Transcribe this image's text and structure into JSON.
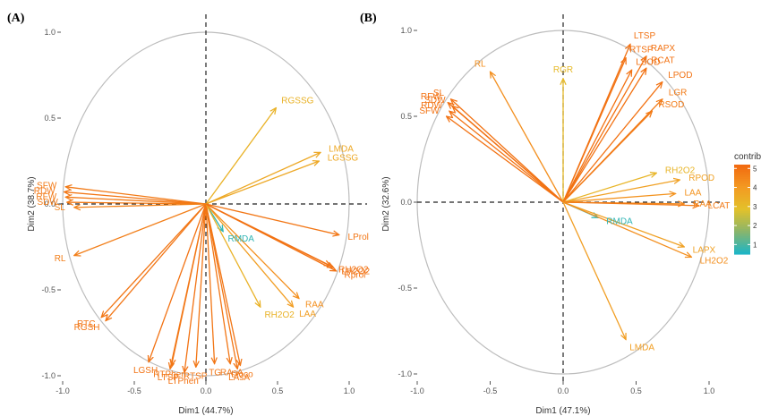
{
  "legend": {
    "title": "contrib",
    "range": [
      0.5,
      5.2
    ],
    "ticks": [
      5,
      4,
      3,
      2,
      1
    ],
    "colors": [
      "#1fb5c4",
      "#8bb56a",
      "#e3c12a",
      "#f39a22",
      "#f26a10"
    ]
  },
  "chart_data": [
    {
      "type": "pca_biplot",
      "panel": "(A)",
      "xlabel": "Dim1 (44.7%)",
      "ylabel": "Dim2 (38.7%)",
      "xlim": [
        -1.0,
        1.0
      ],
      "ylim": [
        -1.0,
        1.0
      ],
      "xticks": [
        "-1.0",
        "-0.5",
        "0.0",
        "0.5",
        "1.0"
      ],
      "yticks": [
        "-1.0",
        "-0.5",
        "0.0",
        "0.5",
        "1.0"
      ],
      "variables": [
        {
          "name": "SFW",
          "x": -0.98,
          "y": 0.1,
          "contrib": 4.8
        },
        {
          "name": "RDW",
          "x": -0.99,
          "y": 0.07,
          "contrib": 4.9
        },
        {
          "name": "RFW",
          "x": -0.98,
          "y": 0.04,
          "contrib": 4.8
        },
        {
          "name": "SDW",
          "x": -0.97,
          "y": 0.01,
          "contrib": 4.8
        },
        {
          "name": "SL",
          "x": -0.92,
          "y": -0.02,
          "contrib": 4.6
        },
        {
          "name": "RL",
          "x": -0.92,
          "y": -0.3,
          "contrib": 4.7
        },
        {
          "name": "RTC",
          "x": -0.73,
          "y": -0.66,
          "contrib": 4.9
        },
        {
          "name": "RGSH",
          "x": -0.7,
          "y": -0.68,
          "contrib": 4.9
        },
        {
          "name": "LGSH",
          "x": -0.4,
          "y": -0.92,
          "contrib": 5.0
        },
        {
          "name": "LTSP",
          "x": -0.25,
          "y": -0.96,
          "contrib": 4.9
        },
        {
          "name": "RTPhen",
          "x": -0.24,
          "y": -0.94,
          "contrib": 4.9
        },
        {
          "name": "LTPhen",
          "x": -0.15,
          "y": -0.98,
          "contrib": 5.0
        },
        {
          "name": "RTSP",
          "x": -0.07,
          "y": -0.95,
          "contrib": 4.9
        },
        {
          "name": "TG",
          "x": 0.06,
          "y": -0.93,
          "contrib": 4.9
        },
        {
          "name": "RAsA",
          "x": 0.17,
          "y": -0.93,
          "contrib": 4.9
        },
        {
          "name": "LAsA",
          "x": 0.22,
          "y": -0.96,
          "contrib": 4.9
        },
        {
          "name": "Ltoco",
          "x": 0.24,
          "y": -0.94,
          "contrib": 4.9
        },
        {
          "name": "RMDA",
          "x": 0.12,
          "y": -0.16,
          "contrib": 0.7
        },
        {
          "name": "RH2O2",
          "x": 0.38,
          "y": -0.6,
          "contrib": 3.3
        },
        {
          "name": "LAA",
          "x": 0.61,
          "y": -0.6,
          "contrib": 3.9
        },
        {
          "name": "RAA",
          "x": 0.65,
          "y": -0.55,
          "contrib": 4.3
        },
        {
          "name": "RGSSG",
          "x": 0.49,
          "y": 0.56,
          "contrib": 3.3
        },
        {
          "name": "LMDA",
          "x": 0.8,
          "y": 0.3,
          "contrib": 3.6
        },
        {
          "name": "LGSSG",
          "x": 0.79,
          "y": 0.25,
          "contrib": 3.6
        },
        {
          "name": "LProl",
          "x": 0.93,
          "y": -0.18,
          "contrib": 4.9
        },
        {
          "name": "RH2O2",
          "x": 0.87,
          "y": -0.36,
          "contrib": 5.0
        },
        {
          "name": "LH2O2",
          "x": 0.89,
          "y": -0.37,
          "contrib": 5.0
        },
        {
          "name": "Rprol",
          "x": 0.91,
          "y": -0.39,
          "contrib": 5.0
        }
      ]
    },
    {
      "type": "pca_biplot",
      "panel": "(B)",
      "xlabel": "Dim1 (47.1%)",
      "ylabel": "Dim2 (32.6%)",
      "xlim": [
        -1.0,
        1.0
      ],
      "ylim": [
        -1.0,
        1.0
      ],
      "xticks": [
        "-1.0",
        "-0.5",
        "0.0",
        "0.5",
        "1.0"
      ],
      "yticks": [
        "-1.0",
        "-0.5",
        "0.0",
        "0.5",
        "1.0"
      ],
      "variables": [
        {
          "name": "RL",
          "x": -0.5,
          "y": 0.76,
          "contrib": 4.3
        },
        {
          "name": "SL",
          "x": -0.77,
          "y": 0.6,
          "contrib": 5.0
        },
        {
          "name": "RFW",
          "x": -0.79,
          "y": 0.58,
          "contrib": 5.0
        },
        {
          "name": "SDW",
          "x": -0.76,
          "y": 0.56,
          "contrib": 5.0
        },
        {
          "name": "RDW",
          "x": -0.78,
          "y": 0.53,
          "contrib": 5.0
        },
        {
          "name": "SFW",
          "x": -0.8,
          "y": 0.5,
          "contrib": 5.0
        },
        {
          "name": "RGR",
          "x": 0.0,
          "y": 0.72,
          "contrib": 3.1
        },
        {
          "name": "LTSP",
          "x": 0.46,
          "y": 0.92,
          "contrib": 5.0
        },
        {
          "name": "RTSP",
          "x": 0.43,
          "y": 0.84,
          "contrib": 5.0
        },
        {
          "name": "RAPX",
          "x": 0.57,
          "y": 0.85,
          "contrib": 5.0
        },
        {
          "name": "LSOD",
          "x": 0.47,
          "y": 0.77,
          "contrib": 5.0
        },
        {
          "name": "RCAT",
          "x": 0.57,
          "y": 0.78,
          "contrib": 5.0
        },
        {
          "name": "LPOD",
          "x": 0.68,
          "y": 0.7,
          "contrib": 5.0
        },
        {
          "name": "LGR",
          "x": 0.68,
          "y": 0.6,
          "contrib": 4.8
        },
        {
          "name": "RSOD",
          "x": 0.61,
          "y": 0.53,
          "contrib": 4.8
        },
        {
          "name": "RH2O2",
          "x": 0.64,
          "y": 0.17,
          "contrib": 3.2
        },
        {
          "name": "RPOD",
          "x": 0.8,
          "y": 0.13,
          "contrib": 3.8
        },
        {
          "name": "LAA",
          "x": 0.77,
          "y": 0.05,
          "contrib": 4.2
        },
        {
          "name": "RAA",
          "x": 0.83,
          "y": -0.01,
          "contrib": 4.5
        },
        {
          "name": "LCAT",
          "x": 0.93,
          "y": -0.02,
          "contrib": 4.8
        },
        {
          "name": "RMDA",
          "x": 0.24,
          "y": -0.09,
          "contrib": 0.7
        },
        {
          "name": "LAPX",
          "x": 0.83,
          "y": -0.26,
          "contrib": 3.8
        },
        {
          "name": "LH2O2",
          "x": 0.88,
          "y": -0.32,
          "contrib": 4.3
        },
        {
          "name": "LMDA",
          "x": 0.43,
          "y": -0.8,
          "contrib": 3.9
        }
      ]
    }
  ]
}
